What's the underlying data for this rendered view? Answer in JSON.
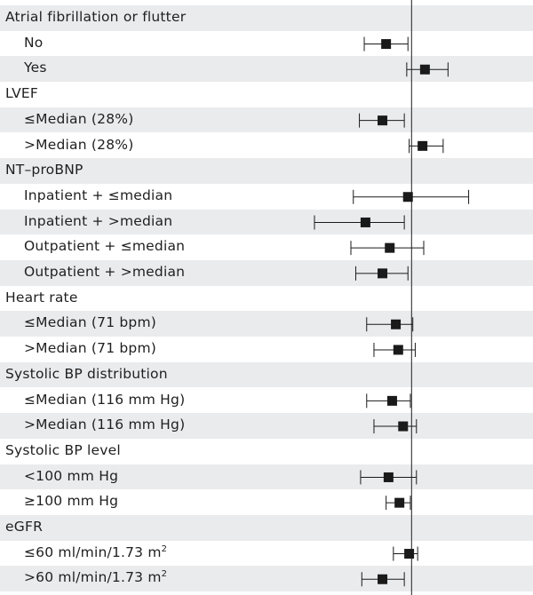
{
  "chart_data": {
    "type": "forest",
    "title": "",
    "xlabel": "",
    "reference_value": 1.0,
    "xlim": [
      0.2,
      2.0
    ],
    "rows": [
      {
        "label": "Atrial fibrillation or flutter",
        "kind": "header"
      },
      {
        "label": "No",
        "kind": "item",
        "estimate": 0.79,
        "ci_low": 0.61,
        "ci_high": 0.97
      },
      {
        "label": "Yes",
        "kind": "item",
        "estimate": 1.11,
        "ci_low": 0.96,
        "ci_high": 1.3
      },
      {
        "label": "LVEF",
        "kind": "header"
      },
      {
        "label": "≤Median (28%)",
        "kind": "item",
        "estimate": 0.76,
        "ci_low": 0.57,
        "ci_high": 0.94
      },
      {
        "label": ">Median (28%)",
        "kind": "item",
        "estimate": 1.09,
        "ci_low": 0.98,
        "ci_high": 1.26
      },
      {
        "label": "NT–proBNP",
        "kind": "header"
      },
      {
        "label": "Inpatient + ≤median",
        "kind": "item",
        "estimate": 0.97,
        "ci_low": 0.52,
        "ci_high": 1.47
      },
      {
        "label": "Inpatient + >median",
        "kind": "item",
        "estimate": 0.62,
        "ci_low": 0.2,
        "ci_high": 0.94
      },
      {
        "label": "Outpatient + ≤median",
        "kind": "item",
        "estimate": 0.82,
        "ci_low": 0.5,
        "ci_high": 1.1
      },
      {
        "label": "Outpatient + >median",
        "kind": "item",
        "estimate": 0.76,
        "ci_low": 0.54,
        "ci_high": 0.97
      },
      {
        "label": "Heart rate",
        "kind": "header"
      },
      {
        "label": "≤Median (71 bpm)",
        "kind": "item",
        "estimate": 0.87,
        "ci_low": 0.63,
        "ci_high": 1.01
      },
      {
        "label": ">Median (71 bpm)",
        "kind": "item",
        "estimate": 0.89,
        "ci_low": 0.69,
        "ci_high": 1.03
      },
      {
        "label": "Systolic BP distribution",
        "kind": "header"
      },
      {
        "label": "≤Median (116 mm Hg)",
        "kind": "item",
        "estimate": 0.84,
        "ci_low": 0.63,
        "ci_high": 0.99
      },
      {
        "label": ">Median (116 mm Hg)",
        "kind": "item",
        "estimate": 0.93,
        "ci_low": 0.69,
        "ci_high": 1.04
      },
      {
        "label": "Systolic BP level",
        "kind": "header"
      },
      {
        "label": "<100 mm Hg",
        "kind": "item",
        "estimate": 0.81,
        "ci_low": 0.58,
        "ci_high": 1.04
      },
      {
        "label": "≥100 mm Hg",
        "kind": "item",
        "estimate": 0.9,
        "ci_low": 0.79,
        "ci_high": 0.99
      },
      {
        "label": "eGFR",
        "kind": "header"
      },
      {
        "label": "≤60 ml/min/1.73 m",
        "sup": "2",
        "kind": "item",
        "estimate": 0.98,
        "ci_low": 0.85,
        "ci_high": 1.05
      },
      {
        "label": ">60 ml/min/1.73 m",
        "sup": "2",
        "kind": "item",
        "estimate": 0.76,
        "ci_low": 0.59,
        "ci_high": 0.94
      }
    ]
  },
  "colors": {
    "shade": "#e9ebed",
    "text": "#1f1f1f",
    "marker": "#1a1a1a"
  }
}
